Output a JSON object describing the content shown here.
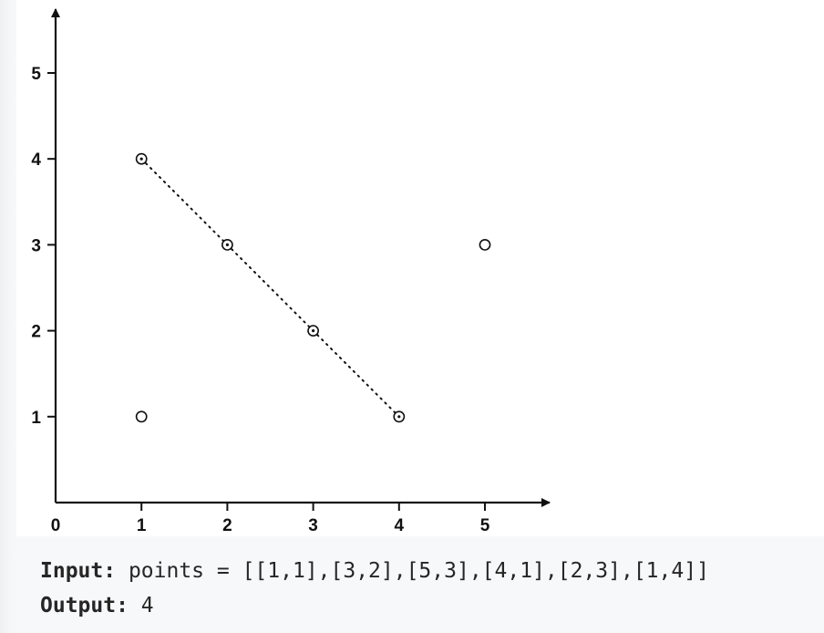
{
  "chart_data": {
    "type": "scatter",
    "xlim": [
      0,
      5
    ],
    "ylim": [
      0,
      5
    ],
    "x_ticks": [
      0,
      1,
      2,
      3,
      4,
      5
    ],
    "y_ticks": [
      1,
      2,
      3,
      4,
      5
    ],
    "points": [
      {
        "x": 1,
        "y": 1,
        "on_line": false
      },
      {
        "x": 3,
        "y": 2,
        "on_line": true
      },
      {
        "x": 5,
        "y": 3,
        "on_line": false
      },
      {
        "x": 4,
        "y": 1,
        "on_line": true
      },
      {
        "x": 2,
        "y": 3,
        "on_line": true
      },
      {
        "x": 1,
        "y": 4,
        "on_line": true
      }
    ],
    "line": {
      "style": "dotted",
      "from": [
        1,
        4
      ],
      "to": [
        4,
        1
      ]
    },
    "grid": false,
    "title": "",
    "xlabel": "",
    "ylabel": ""
  },
  "example": {
    "input_label": "Input:",
    "input_value": " points = [[1,1],[3,2],[5,3],[4,1],[2,3],[1,4]]",
    "output_label": "Output:",
    "output_value": " 4"
  },
  "colors": {
    "axis": "#111111",
    "marker": "#111111",
    "code_background": "#f7f8fa",
    "text": "#262626"
  }
}
